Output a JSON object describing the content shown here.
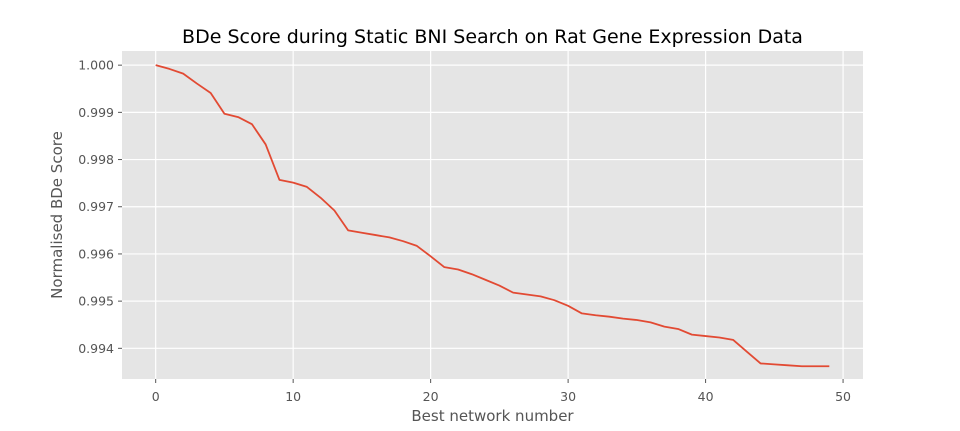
{
  "chart_data": {
    "type": "line",
    "title": "BDe Score during Static BNI Search on Rat Gene Expression Data",
    "xlabel": "Best network number",
    "ylabel": "Normalised BDe Score",
    "xlim": [
      -2.45,
      51.45
    ],
    "ylim": [
      0.99335,
      1.0003
    ],
    "xticks": [
      0,
      10,
      20,
      30,
      40,
      50
    ],
    "xtick_labels": [
      "0",
      "10",
      "20",
      "30",
      "40",
      "50"
    ],
    "yticks": [
      0.994,
      0.995,
      0.996,
      0.997,
      0.998,
      0.999,
      1.0
    ],
    "ytick_labels": [
      "0.994",
      "0.995",
      "0.996",
      "0.997",
      "0.998",
      "0.999",
      "1.000"
    ],
    "grid": true,
    "background": "#e5e5e5",
    "line_color": "#e24a33",
    "series": [
      {
        "x": [
          0,
          1,
          2,
          3,
          4,
          5,
          6,
          7,
          8,
          9,
          10,
          11,
          12,
          13,
          14,
          15,
          16,
          17,
          18,
          19,
          20,
          21,
          22,
          23,
          24,
          25,
          26,
          27,
          28,
          29,
          30,
          31,
          32,
          33,
          34,
          35,
          36,
          37,
          38,
          39,
          40,
          41,
          42,
          43,
          44,
          45,
          46,
          47,
          48,
          49
        ],
        "values": [
          1.0,
          0.99992,
          0.99982,
          0.99961,
          0.99941,
          0.99897,
          0.9989,
          0.99875,
          0.99832,
          0.99757,
          0.99751,
          0.99742,
          0.99719,
          0.99692,
          0.9965,
          0.99645,
          0.9964,
          0.99635,
          0.99627,
          0.99617,
          0.99595,
          0.99572,
          0.99567,
          0.99557,
          0.99545,
          0.99533,
          0.99518,
          0.99514,
          0.9951,
          0.99502,
          0.9949,
          0.99474,
          0.9947,
          0.99467,
          0.99463,
          0.9946,
          0.99455,
          0.99446,
          0.99441,
          0.99429,
          0.99426,
          0.99423,
          0.99418,
          0.99393,
          0.99368,
          0.99366,
          0.99364,
          0.99362,
          0.99362,
          0.99362
        ]
      }
    ]
  }
}
